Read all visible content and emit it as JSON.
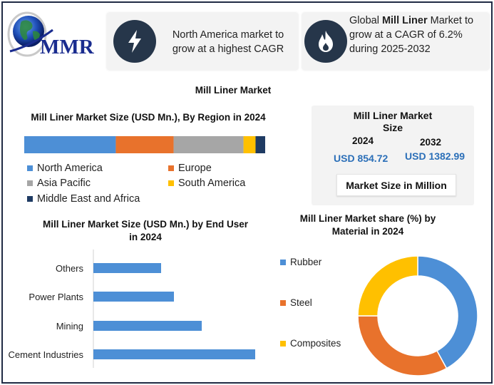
{
  "logo": {
    "text": "MMR"
  },
  "card_north_america": {
    "text": "North America market to grow at a highest CAGR",
    "icon": "lightning-bolt-icon"
  },
  "card_cagr": {
    "text_prefix": "Global ",
    "text_bold": "Mill Liner",
    "text_suffix": " Market to grow at a CAGR of 6.2% during 2025-2032",
    "icon": "flame-icon"
  },
  "main_title": "Mill Liner Market",
  "colors": {
    "north_america": "#4d8fd6",
    "europe": "#e8722c",
    "asia_pacific": "#a6a6a6",
    "south_america": "#ffc000",
    "mea": "#1f3b63",
    "icon_bg": "#26364a",
    "usd_text": "#2b6fb8"
  },
  "market_size": {
    "title": "Mill Liner Market Size",
    "year_a": "2024",
    "year_b": "2032",
    "value_a": "USD 854.72",
    "value_b": "USD 1382.99",
    "unit_box": "Market Size in Million"
  },
  "chart_data": [
    {
      "type": "bar",
      "orientation": "horizontal-stacked",
      "title": "Mill Liner Market Size (USD Mn.), By Region in 2024",
      "series": [
        {
          "name": "North America",
          "values": [
            38
          ]
        },
        {
          "name": "Europe",
          "values": [
            24
          ]
        },
        {
          "name": "Asia Pacific",
          "values": [
            29
          ]
        },
        {
          "name": "South America",
          "values": [
            5
          ]
        },
        {
          "name": "Middle East and Africa",
          "values": [
            4
          ]
        }
      ],
      "legend": "bottom"
    },
    {
      "type": "bar",
      "orientation": "horizontal",
      "title": "Mill Liner Market Size (USD Mn.)  by End User in 2024",
      "categories": [
        "Others",
        "Power Plants",
        "Mining",
        "Cement Industries"
      ],
      "values": [
        95,
        113,
        152,
        227
      ],
      "xlim": [
        0,
        240
      ],
      "grid": false
    },
    {
      "type": "pie",
      "style": "donut",
      "title": "Mill Liner Market share (%)  by Material in 2024",
      "categories": [
        "Rubber",
        "Steel",
        "Composites"
      ],
      "values": [
        42,
        33,
        25
      ],
      "legend": "left"
    }
  ]
}
